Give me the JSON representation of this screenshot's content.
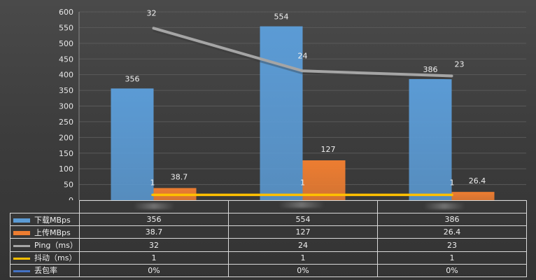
{
  "chart_data": {
    "type": "bar",
    "categories": [
      "",
      "",
      ""
    ],
    "ylim": [
      0,
      600
    ],
    "yticks": [
      0,
      50,
      100,
      150,
      200,
      250,
      300,
      350,
      400,
      450,
      500,
      550,
      600
    ],
    "grid": true,
    "series": [
      {
        "name": "下载MBps",
        "type": "bar",
        "color": "#5b9bd5",
        "values": [
          356,
          554,
          386
        ],
        "labels": [
          "356",
          "554",
          "386"
        ]
      },
      {
        "name": "上传MBps",
        "type": "bar",
        "color": "#ed7d31",
        "values": [
          38.7,
          127,
          26.4
        ],
        "labels": [
          "38.7",
          "127",
          "26.4"
        ]
      },
      {
        "name": "Ping（ms）",
        "type": "line",
        "color": "#a5a5a5",
        "values": [
          32,
          24,
          23
        ],
        "plot_values": [
          548,
          412,
          396
        ],
        "labels": [
          "32",
          "24",
          "23"
        ]
      },
      {
        "name": "抖动（ms）",
        "type": "line",
        "color": "#ffc000",
        "values": [
          1,
          1,
          1
        ],
        "plot_values": [
          17,
          17,
          17
        ],
        "labels": [
          "1",
          "1",
          "1"
        ]
      },
      {
        "name": "丢包率",
        "type": "line",
        "color": "#4472c4",
        "values": [
          "0%",
          "0%",
          "0%"
        ],
        "plot_values": [],
        "labels": []
      }
    ],
    "table": {
      "rows": [
        {
          "label": "下载MBps",
          "cells": [
            "356",
            "554",
            "386"
          ]
        },
        {
          "label": "上传MBps",
          "cells": [
            "38.7",
            "127",
            "26.4"
          ]
        },
        {
          "label": "Ping（ms）",
          "cells": [
            "32",
            "24",
            "23"
          ]
        },
        {
          "label": "抖动（ms）",
          "cells": [
            "1",
            "1",
            "1"
          ]
        },
        {
          "label": "丢包率",
          "cells": [
            "0%",
            "0%",
            "0%"
          ]
        }
      ]
    }
  }
}
